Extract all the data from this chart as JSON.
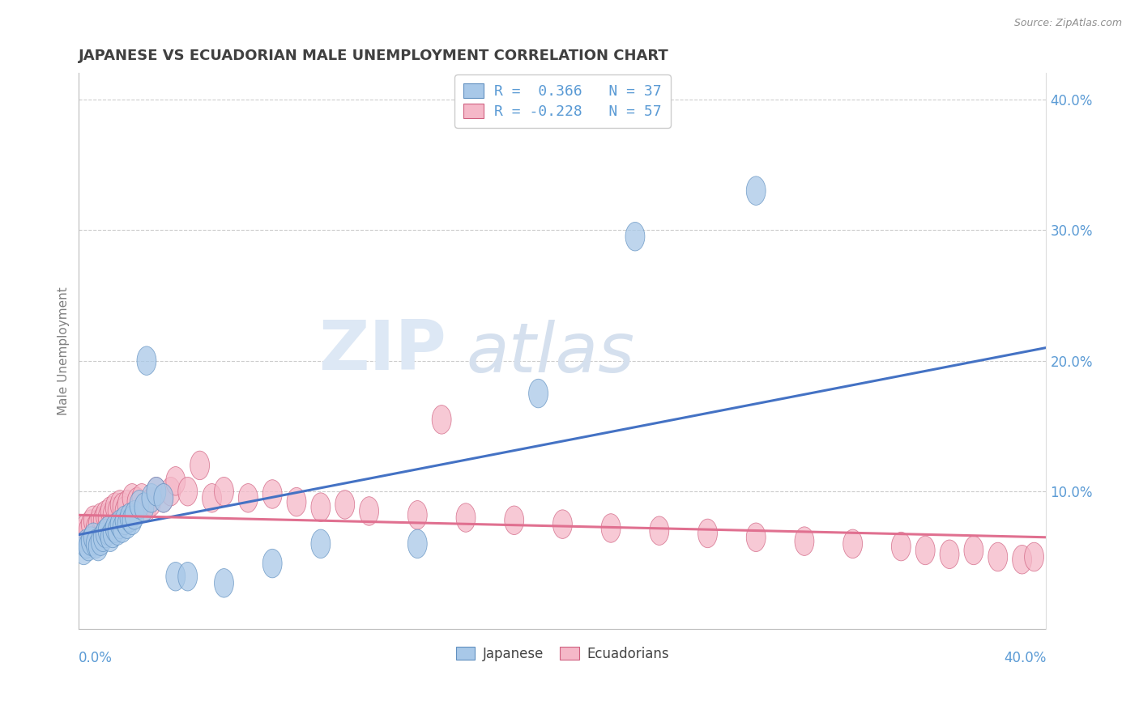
{
  "title": "JAPANESE VS ECUADORIAN MALE UNEMPLOYMENT CORRELATION CHART",
  "source": "Source: ZipAtlas.com",
  "ylabel": "Male Unemployment",
  "xlim": [
    0.0,
    0.4
  ],
  "ylim": [
    -0.005,
    0.42
  ],
  "legend_r1": "R =  0.366   N = 37",
  "legend_r2": "R = -0.228   N = 57",
  "legend_label1": "Japanese",
  "legend_label2": "Ecuadorians",
  "blue_fill": "#A8C8E8",
  "pink_fill": "#F5B8C8",
  "blue_edge": "#6090C0",
  "pink_edge": "#D06080",
  "blue_line": "#4472C4",
  "pink_line": "#E07090",
  "title_color": "#404040",
  "axis_label_color": "#5B9BD5",
  "ylabel_color": "#808080",
  "grid_color": "#CCCCCC",
  "source_color": "#909090",
  "watermark_zip_color": "#DDE8F5",
  "watermark_atlas_color": "#D5E0EE",
  "japanese_x": [
    0.002,
    0.003,
    0.004,
    0.005,
    0.006,
    0.007,
    0.008,
    0.009,
    0.01,
    0.011,
    0.012,
    0.013,
    0.014,
    0.015,
    0.016,
    0.017,
    0.018,
    0.019,
    0.02,
    0.021,
    0.022,
    0.023,
    0.025,
    0.027,
    0.028,
    0.03,
    0.032,
    0.035,
    0.04,
    0.045,
    0.06,
    0.08,
    0.1,
    0.14,
    0.19,
    0.23,
    0.28
  ],
  "japanese_y": [
    0.055,
    0.06,
    0.058,
    0.062,
    0.065,
    0.06,
    0.058,
    0.062,
    0.065,
    0.068,
    0.07,
    0.065,
    0.068,
    0.072,
    0.07,
    0.075,
    0.072,
    0.078,
    0.075,
    0.08,
    0.078,
    0.082,
    0.09,
    0.088,
    0.2,
    0.095,
    0.1,
    0.095,
    0.035,
    0.035,
    0.03,
    0.045,
    0.06,
    0.06,
    0.175,
    0.295,
    0.33
  ],
  "ecuadorian_x": [
    0.001,
    0.002,
    0.003,
    0.004,
    0.005,
    0.006,
    0.007,
    0.008,
    0.009,
    0.01,
    0.011,
    0.012,
    0.013,
    0.014,
    0.015,
    0.016,
    0.017,
    0.018,
    0.019,
    0.02,
    0.022,
    0.024,
    0.026,
    0.028,
    0.03,
    0.032,
    0.035,
    0.038,
    0.04,
    0.045,
    0.05,
    0.055,
    0.06,
    0.07,
    0.08,
    0.09,
    0.1,
    0.11,
    0.12,
    0.14,
    0.15,
    0.16,
    0.18,
    0.2,
    0.22,
    0.24,
    0.26,
    0.28,
    0.3,
    0.32,
    0.34,
    0.35,
    0.36,
    0.37,
    0.38,
    0.39,
    0.395
  ],
  "ecuadorian_y": [
    0.065,
    0.068,
    0.072,
    0.07,
    0.075,
    0.078,
    0.072,
    0.075,
    0.08,
    0.078,
    0.082,
    0.08,
    0.085,
    0.082,
    0.088,
    0.085,
    0.09,
    0.088,
    0.085,
    0.09,
    0.095,
    0.092,
    0.095,
    0.088,
    0.092,
    0.1,
    0.095,
    0.1,
    0.108,
    0.1,
    0.12,
    0.095,
    0.1,
    0.095,
    0.098,
    0.092,
    0.088,
    0.09,
    0.085,
    0.082,
    0.155,
    0.08,
    0.078,
    0.075,
    0.072,
    0.07,
    0.068,
    0.065,
    0.062,
    0.06,
    0.058,
    0.055,
    0.052,
    0.055,
    0.05,
    0.048,
    0.05
  ]
}
